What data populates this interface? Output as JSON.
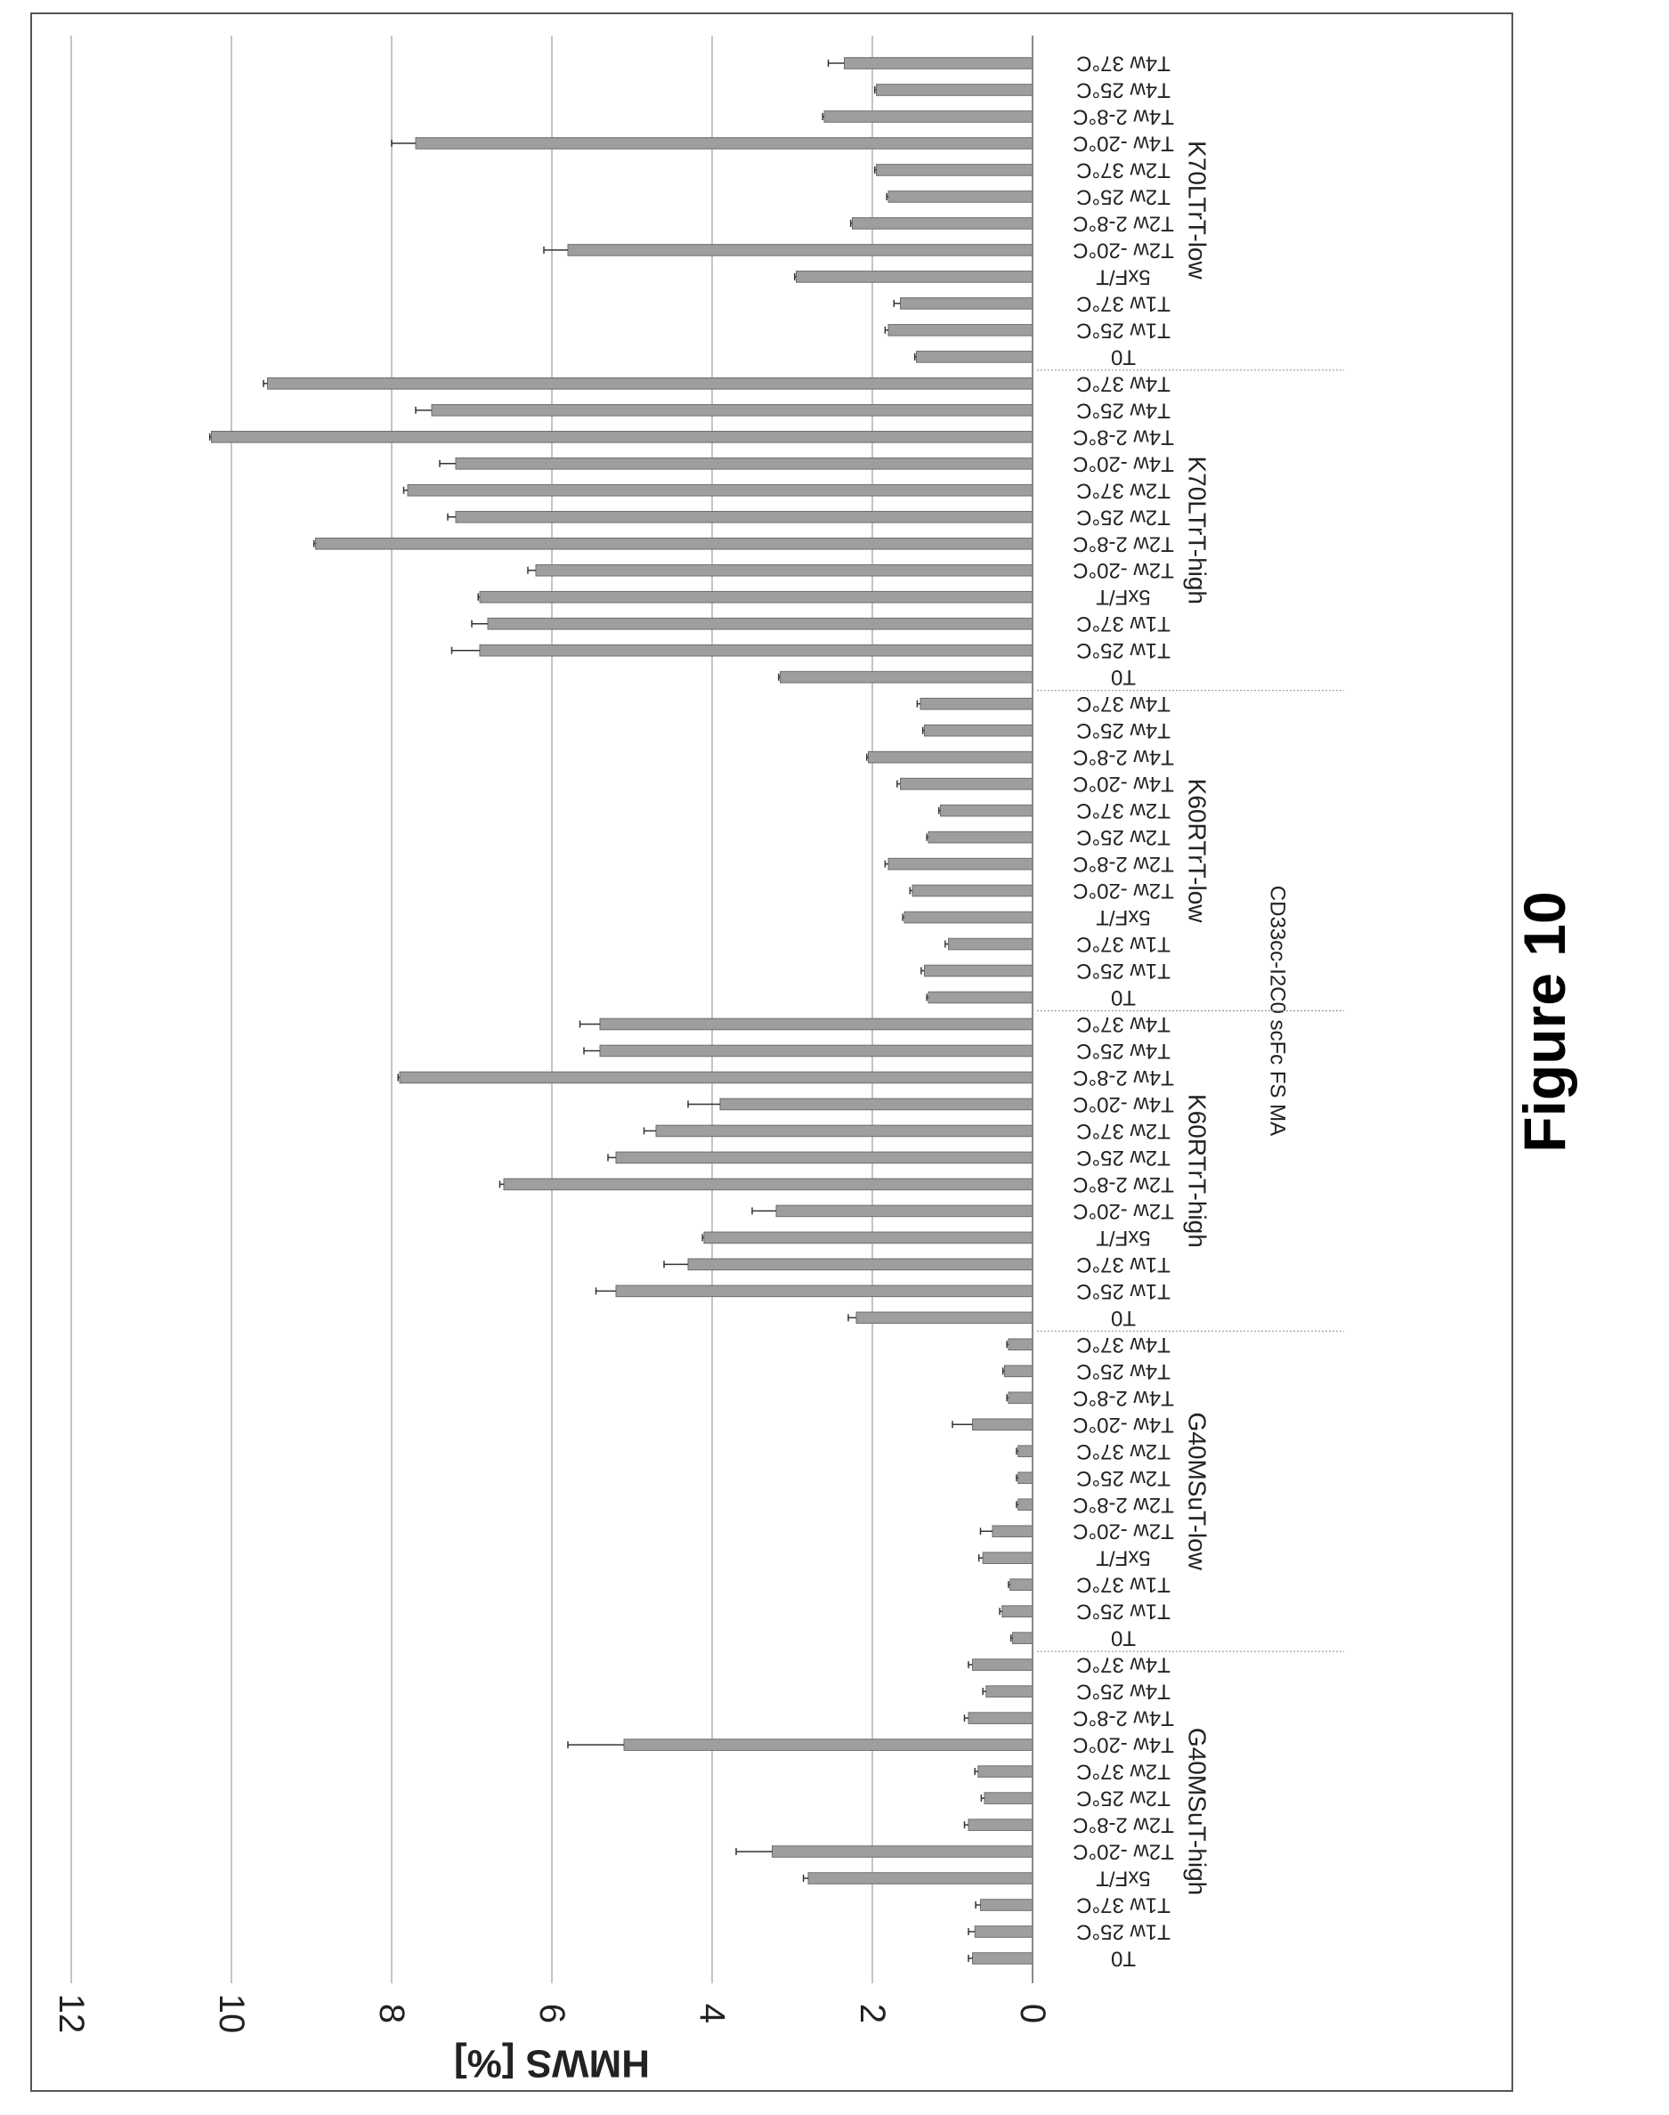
{
  "figure_caption": "Figure 10",
  "chart_data": {
    "type": "bar",
    "orientation": "horizontal, figure rotated 90 degrees",
    "title": "CD33cc-I2C0 scFc FS MA",
    "ylabel": "HMWS [%]",
    "xlabel": "",
    "ylim": [
      0,
      12
    ],
    "yticks": [
      0,
      2,
      4,
      6,
      8,
      10,
      12
    ],
    "grid": true,
    "legend": "none",
    "bar_color": "#9e9e9e",
    "groups": [
      {
        "name": "G40MSuT-high",
        "categories": [
          "T0",
          "T1w 25°C",
          "T1w 37°C",
          "5xF/T",
          "T2w -20°C",
          "T2w 2-8°C",
          "T2w 25°C",
          "T2w 37°C",
          "T4w -20°C",
          "T4w 2-8°C",
          "T4w 25°C",
          "T4w 37°C"
        ],
        "values": [
          0.75,
          0.72,
          0.65,
          2.8,
          3.25,
          0.8,
          0.6,
          0.68,
          5.1,
          0.8,
          0.58,
          0.75
        ],
        "errors": [
          0.05,
          0.08,
          0.06,
          0.06,
          0.45,
          0.05,
          0.04,
          0.04,
          0.7,
          0.05,
          0.04,
          0.05
        ]
      },
      {
        "name": "G40MSuT-low",
        "categories": [
          "T0",
          "T1w 25°C",
          "T1w 37°C",
          "5xF/T",
          "T2w -20°C",
          "T2w 2-8°C",
          "T2w 25°C",
          "T2w 37°C",
          "T4w -20°C",
          "T4w 2-8°C",
          "T4w 25°C",
          "T4w 37°C"
        ],
        "values": [
          0.25,
          0.38,
          0.28,
          0.62,
          0.5,
          0.18,
          0.18,
          0.18,
          0.75,
          0.3,
          0.35,
          0.3
        ],
        "errors": [
          0.02,
          0.03,
          0.02,
          0.05,
          0.15,
          0.02,
          0.02,
          0.02,
          0.25,
          0.02,
          0.02,
          0.02
        ]
      },
      {
        "name": "K60RTrT-high",
        "categories": [
          "T0",
          "T1w 25°C",
          "T1w 37°C",
          "5xF/T",
          "T2w -20°C",
          "T2w 2-8°C",
          "T2w 25°C",
          "T2w 37°C",
          "T4w -20°C",
          "T4w 2-8°C",
          "T4w 25°C",
          "T4w 37°C"
        ],
        "values": [
          2.2,
          5.2,
          4.3,
          4.1,
          3.2,
          6.6,
          5.2,
          4.7,
          3.9,
          7.9,
          5.4,
          5.4
        ],
        "errors": [
          0.1,
          0.25,
          0.3,
          0.02,
          0.3,
          0.05,
          0.1,
          0.15,
          0.4,
          0.02,
          0.2,
          0.25
        ]
      },
      {
        "name": "K60RTrT-low",
        "categories": [
          "T0",
          "T1w 25°C",
          "T1w 37°C",
          "5xF/T",
          "T2w -20°C",
          "T2w 2-8°C",
          "T2w 25°C",
          "T2w 37°C",
          "T4w -20°C",
          "T4w 2-8°C",
          "T4w 25°C",
          "T4w 37°C"
        ],
        "values": [
          1.3,
          1.35,
          1.05,
          1.6,
          1.5,
          1.8,
          1.3,
          1.15,
          1.65,
          2.05,
          1.35,
          1.4
        ],
        "errors": [
          0.02,
          0.04,
          0.04,
          0.02,
          0.03,
          0.04,
          0.02,
          0.02,
          0.04,
          0.02,
          0.02,
          0.04
        ]
      },
      {
        "name": "K70LTrT-high",
        "categories": [
          "T0",
          "T1w 25°C",
          "T1w 37°C",
          "5xF/T",
          "T2w -20°C",
          "T2w 2-8°C",
          "T2w 25°C",
          "T2w 37°C",
          "T4w -20°C",
          "T4w 2-8°C",
          "T4w 25°C",
          "T4w 37°C"
        ],
        "values": [
          3.15,
          6.9,
          6.8,
          6.9,
          6.2,
          8.95,
          7.2,
          7.8,
          7.2,
          10.25,
          7.5,
          9.55
        ],
        "errors": [
          0.02,
          0.35,
          0.2,
          0.02,
          0.1,
          0.02,
          0.1,
          0.05,
          0.2,
          0.02,
          0.2,
          0.05
        ]
      },
      {
        "name": "K70LTrT-low",
        "categories": [
          "T0",
          "T1w 25°C",
          "T1w 37°C",
          "5xF/T",
          "T2w -20°C",
          "T2w 2-8°C",
          "T2w 25°C",
          "T2w 37°C",
          "T4w -20°C",
          "T4w 2-8°C",
          "T4w 25°C",
          "T4w 37°C"
        ],
        "values": [
          1.45,
          1.8,
          1.65,
          2.95,
          5.8,
          2.25,
          1.8,
          1.95,
          7.7,
          2.6,
          1.95,
          2.35
        ],
        "errors": [
          0.02,
          0.04,
          0.08,
          0.02,
          0.3,
          0.02,
          0.02,
          0.02,
          0.3,
          0.02,
          0.02,
          0.2
        ]
      }
    ]
  }
}
